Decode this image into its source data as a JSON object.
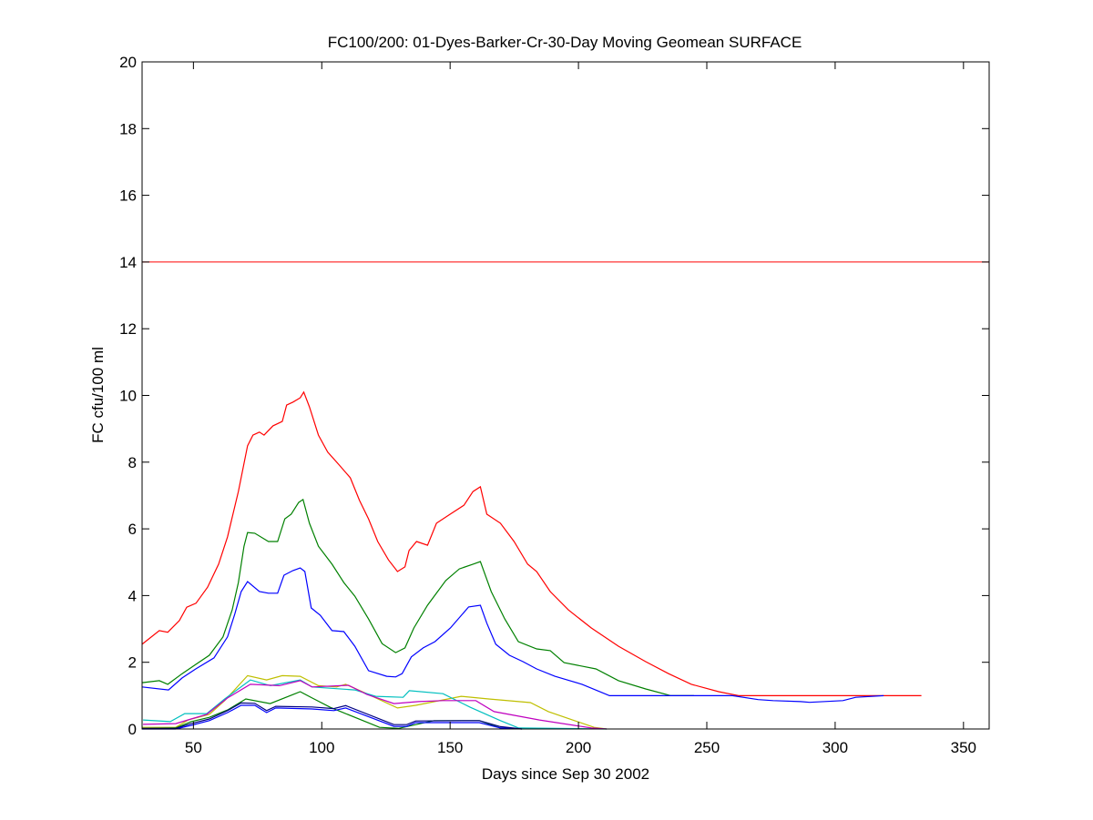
{
  "chart_data": {
    "type": "line",
    "title": "FC100/200: 01-Dyes-Barker-Cr-30-Day Moving Geomean SURFACE",
    "xlabel": "Days since Sep 30 2002",
    "ylabel": "FC cfu/100 ml",
    "xlim": [
      30,
      360
    ],
    "ylim": [
      0,
      20
    ],
    "xticks": [
      50,
      100,
      150,
      200,
      250,
      300,
      350
    ],
    "yticks": [
      0,
      2,
      4,
      6,
      8,
      10,
      12,
      14,
      16,
      18,
      20
    ],
    "grid": false,
    "threshold": {
      "y": 14,
      "color": "#ff0000"
    },
    "series": [
      {
        "name": "red",
        "color": "#ff0000",
        "x": [
          30,
          36.7,
          40,
          44.5,
          47.4,
          51,
          55.5,
          59.8,
          63.3,
          67.5,
          71.1,
          73.2,
          75.7,
          77.5,
          81,
          84.6,
          86.3,
          88.8,
          91.6,
          93,
          95.2,
          98.7,
          102.3,
          106.5,
          111.1,
          114.7,
          118.2,
          121.8,
          126,
          129.5,
          132.4,
          134,
          136.9,
          141.2,
          144.7,
          150,
          155.4,
          158.9,
          161.8,
          164.3,
          169.6,
          174.9,
          180.2,
          183.7,
          189,
          196.1,
          205,
          215.6,
          226.2,
          235.1,
          244,
          254.6,
          262.4,
          300,
          333.6
        ],
        "y": [
          2.54,
          2.95,
          2.9,
          3.25,
          3.65,
          3.77,
          4.25,
          4.94,
          5.76,
          7.12,
          8.49,
          8.81,
          8.9,
          8.81,
          9.09,
          9.22,
          9.71,
          9.8,
          9.93,
          10.1,
          9.66,
          8.81,
          8.3,
          7.94,
          7.53,
          6.85,
          6.3,
          5.62,
          5.07,
          4.72,
          4.86,
          5.35,
          5.62,
          5.51,
          6.17,
          6.44,
          6.71,
          7.12,
          7.26,
          6.44,
          6.17,
          5.62,
          4.94,
          4.72,
          4.12,
          3.57,
          3.03,
          2.48,
          2.02,
          1.66,
          1.34,
          1.12,
          1.0,
          1.0,
          1.0
        ]
      },
      {
        "name": "green",
        "color": "#008000",
        "x": [
          30,
          36.7,
          40,
          45.6,
          51,
          56.2,
          61.5,
          65.1,
          67.5,
          69.7,
          71.1,
          73.9,
          79.2,
          82.8,
          85.6,
          88.1,
          91,
          92.7,
          95.2,
          98.7,
          104,
          108.6,
          112.9,
          118.2,
          123.5,
          128.8,
          132.4,
          135.9,
          141.2,
          148.3,
          153.6,
          158.9,
          161.8,
          166,
          171.3,
          176.6,
          183.7,
          189,
          194.4,
          206.8,
          215.6,
          226.2,
          236,
          245
        ],
        "y": [
          1.39,
          1.45,
          1.34,
          1.66,
          1.94,
          2.21,
          2.76,
          3.57,
          4.39,
          5.48,
          5.89,
          5.87,
          5.62,
          5.62,
          6.3,
          6.44,
          6.79,
          6.88,
          6.17,
          5.48,
          4.94,
          4.39,
          3.98,
          3.3,
          2.56,
          2.29,
          2.43,
          3.03,
          3.71,
          4.45,
          4.8,
          4.94,
          5.02,
          4.12,
          3.3,
          2.62,
          2.4,
          2.35,
          1.99,
          1.8,
          1.45,
          1.2,
          1.0,
          1.0
        ]
      },
      {
        "name": "blue",
        "color": "#0000ff",
        "x": [
          30,
          40.3,
          45.6,
          50.9,
          58,
          63.3,
          66.1,
          68.6,
          71.1,
          75.7,
          79.2,
          82.8,
          85.3,
          88.8,
          91.6,
          93.4,
          95.9,
          99.4,
          104,
          108.6,
          112.9,
          118.2,
          125.3,
          128.8,
          131.3,
          134.9,
          139.5,
          144.1,
          150.1,
          157.2,
          161.8,
          164.3,
          167.8,
          173.1,
          178.4,
          183.7,
          190.8,
          201.4,
          212.1,
          260,
          270,
          275.8,
          286.5,
          290,
          303,
          308,
          318.9
        ],
        "y": [
          1.26,
          1.17,
          1.53,
          1.8,
          2.13,
          2.76,
          3.44,
          4.12,
          4.42,
          4.12,
          4.07,
          4.07,
          4.61,
          4.75,
          4.83,
          4.72,
          3.63,
          3.41,
          2.95,
          2.92,
          2.48,
          1.75,
          1.58,
          1.56,
          1.66,
          2.16,
          2.43,
          2.62,
          3.03,
          3.66,
          3.71,
          3.17,
          2.54,
          2.21,
          2.02,
          1.8,
          1.58,
          1.34,
          1.0,
          1.0,
          0.88,
          0.85,
          0.82,
          0.8,
          0.85,
          0.95,
          1.0
        ]
      },
      {
        "name": "yellow",
        "color": "#bfbf00",
        "x": [
          30,
          43.1,
          48,
          56.2,
          62.2,
          71.1,
          78.5,
          84.6,
          91.6,
          98.7,
          105.8,
          109.3,
          117.5,
          129.5,
          136.6,
          154.3,
          165,
          181.3,
          188.3,
          206.1,
          211
        ],
        "y": [
          0.05,
          0.05,
          0.27,
          0.44,
          0.85,
          1.6,
          1.47,
          1.6,
          1.58,
          1.3,
          1.26,
          1.34,
          1.06,
          0.63,
          0.71,
          0.98,
          0.9,
          0.79,
          0.52,
          0.05,
          0
        ]
      },
      {
        "name": "cyan",
        "color": "#00bfbf",
        "x": [
          30.4,
          41,
          46.6,
          55.2,
          62.2,
          72.2,
          80,
          91.6,
          96.2,
          112.9,
          121,
          131.7,
          134.1,
          147.2,
          157.9,
          169.6,
          176.7,
          211
        ],
        "y": [
          0.27,
          0.22,
          0.46,
          0.46,
          0.9,
          1.47,
          1.3,
          1.47,
          1.26,
          1.17,
          0.98,
          0.95,
          1.15,
          1.06,
          0.65,
          0.25,
          0.03,
          0.0
        ]
      },
      {
        "name": "magenta",
        "color": "#bf00bf",
        "x": [
          30.4,
          43.1,
          49.1,
          55.2,
          63.3,
          72.2,
          83.5,
          91.6,
          96.2,
          110.4,
          117.5,
          128.1,
          137.7,
          147.2,
          152.9,
          160,
          167.1,
          184.8,
          205,
          211
        ],
        "y": [
          0.14,
          0.16,
          0.3,
          0.44,
          0.93,
          1.34,
          1.3,
          1.45,
          1.26,
          1.31,
          1.04,
          0.76,
          0.82,
          0.85,
          0.85,
          0.85,
          0.52,
          0.27,
          0.03,
          0
        ]
      },
      {
        "name": "dark-green",
        "color": "#008000",
        "x": [
          30,
          43.1,
          49.1,
          56.2,
          63.3,
          70.4,
          79.9,
          91.6,
          96.2,
          103.3,
          122.5,
          130,
          143.7,
          161.4,
          169.6,
          178
        ],
        "y": [
          0.02,
          0.03,
          0.22,
          0.35,
          0.57,
          0.9,
          0.76,
          1.12,
          0.93,
          0.65,
          0.05,
          0.02,
          0.25,
          0.25,
          0.03,
          0
        ]
      },
      {
        "name": "navy",
        "color": "#0000ff",
        "x": [
          30,
          43.1,
          49.1,
          56.2,
          63.3,
          68.6,
          73.9,
          78.5,
          82.1,
          96.2,
          104.7,
          109.3,
          128.1,
          133.1,
          136.6,
          161.4,
          169.6,
          178
        ],
        "y": [
          0,
          0,
          0.11,
          0.25,
          0.49,
          0.71,
          0.71,
          0.49,
          0.63,
          0.6,
          0.55,
          0.63,
          0.08,
          0.08,
          0.19,
          0.19,
          0.03,
          0
        ]
      },
      {
        "name": "black",
        "color": "#000080",
        "x": [
          30,
          43.1,
          49.1,
          56.2,
          63.3,
          68.6,
          73.9,
          78.5,
          82.1,
          96.2,
          104.7,
          109.3,
          128.1,
          133.1,
          136.6,
          161.4,
          169.6,
          178
        ],
        "y": [
          0.02,
          0.02,
          0.16,
          0.3,
          0.55,
          0.78,
          0.77,
          0.55,
          0.68,
          0.66,
          0.61,
          0.7,
          0.13,
          0.13,
          0.24,
          0.25,
          0.07,
          0
        ]
      }
    ]
  }
}
